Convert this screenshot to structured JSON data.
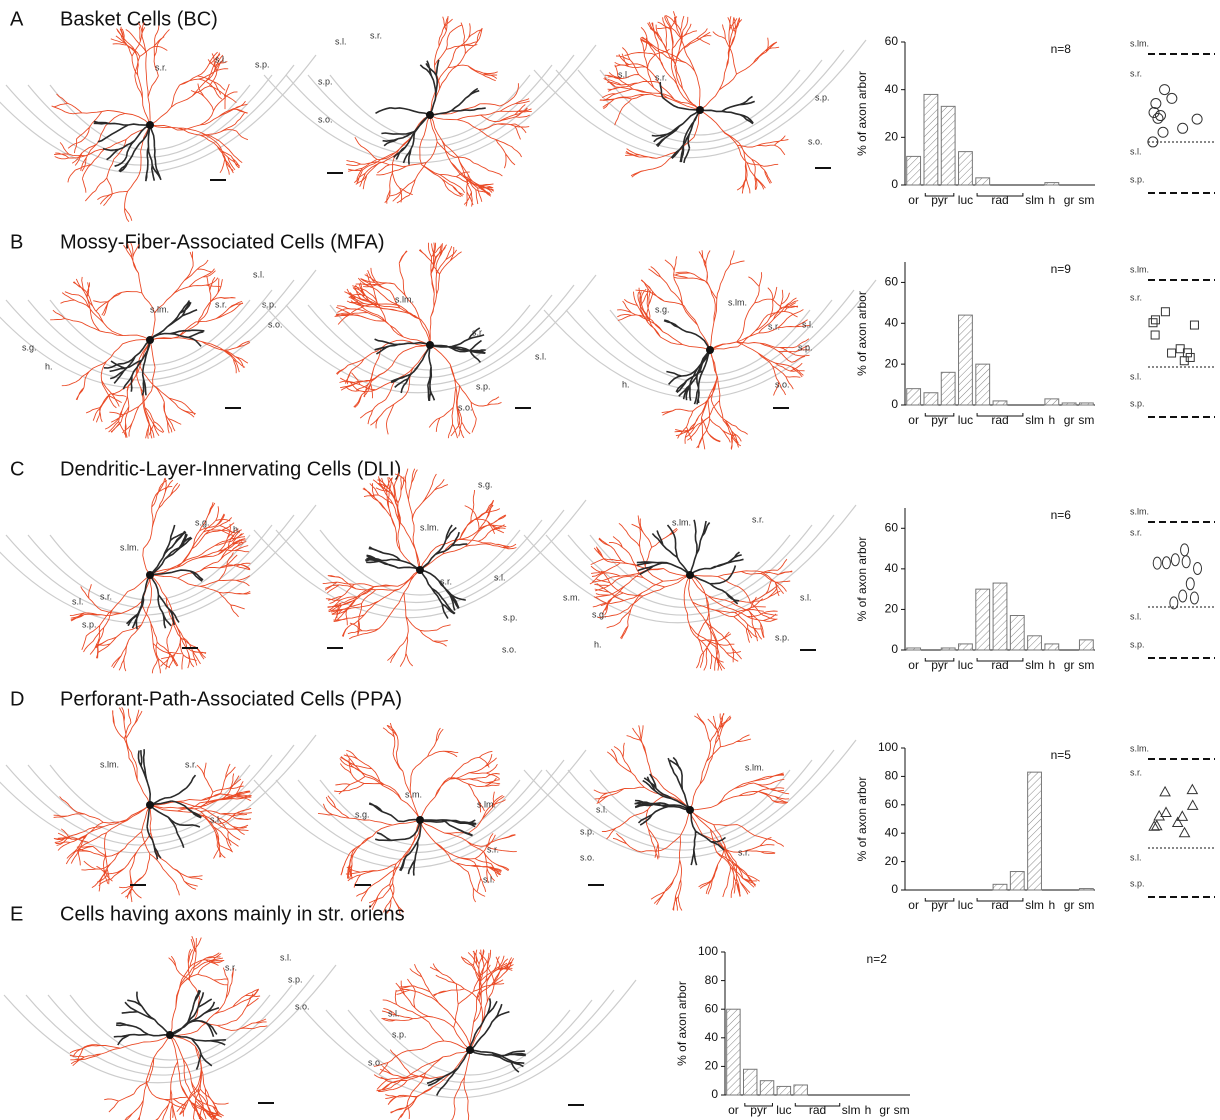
{
  "figure": {
    "panels": [
      {
        "letter": "A",
        "title": "Basket Cells (BC)",
        "drawing_labels": [
          [
            "s.r.",
            "s.l.",
            "s.p."
          ],
          [
            "s.l.",
            "s.r.",
            "s.p.",
            "s.o."
          ],
          [
            "s.l.",
            "s.r.",
            "s.p.",
            "s.o."
          ]
        ],
        "soma_labels": [
          "s.lm.",
          "s.r.",
          "s.l.",
          "s.p."
        ]
      },
      {
        "letter": "B",
        "title": "Mossy-Fiber-Associated Cells (MFA)",
        "drawing_labels": [
          [
            "s.lm.",
            "s.r.",
            "s.l.",
            "s.p.",
            "s.o.",
            "s.g.",
            "h."
          ],
          [
            "s.lm.",
            "s.r.",
            "s.l.",
            "s.p.",
            "s.o."
          ],
          [
            "s.g.",
            "s.lm.",
            "s.r.",
            "s.l.",
            "s.p.",
            "s.o.",
            "h."
          ]
        ],
        "soma_labels": [
          "s.lm.",
          "s.r.",
          "s.l.",
          "s.p."
        ]
      },
      {
        "letter": "C",
        "title": "Dendritic-Layer-Innervating Cells (DLI)",
        "drawing_labels": [
          [
            "s.g.",
            "h.",
            "s.lm.",
            "s.l.",
            "s.r.",
            "s.p."
          ],
          [
            "s.lm.",
            "s.r.",
            "s.l.",
            "s.p.",
            "s.o."
          ],
          [
            "s.g.",
            "s.lm.",
            "s.r.",
            "s.m.",
            "s.g.",
            "h.",
            "s.l.",
            "s.p."
          ]
        ],
        "soma_labels": [
          "s.lm.",
          "s.r.",
          "s.l.",
          "s.p."
        ]
      },
      {
        "letter": "D",
        "title": "Perforant-Path-Associated Cells (PPA)",
        "drawing_labels": [
          [
            "s.lm.",
            "s.r.",
            "s.l."
          ],
          [
            "s.m.",
            "s.lm.",
            "s.g.",
            "s.r.",
            "s.l."
          ],
          [
            "s.lm.",
            "s.l.",
            "s.p.",
            "s.r.",
            "s.o."
          ]
        ],
        "soma_labels": [
          "s.lm.",
          "s.r.",
          "s.l.",
          "s.p."
        ]
      },
      {
        "letter": "E",
        "title": "Cells having axons mainly in str. oriens",
        "drawing_labels": [
          [
            "s.r.",
            "s.l.",
            "s.p.",
            "s.o."
          ],
          [
            "s.l.",
            "s.p.",
            "s.o."
          ]
        ]
      }
    ]
  },
  "chart_data": [
    {
      "type": "bar",
      "ylabel": "% of axon arbor",
      "n_label": "n=8",
      "categories": [
        "or",
        "pyr",
        null,
        "luc",
        "rad",
        null,
        null,
        "slm",
        "h",
        "gr",
        "sm"
      ],
      "values": [
        12,
        38,
        33,
        14,
        3,
        0,
        0,
        0,
        1,
        0,
        0
      ],
      "color": "#777777",
      "ylim": [
        0,
        60
      ],
      "yticks": [
        0,
        20,
        40,
        60
      ]
    },
    {
      "type": "bar",
      "ylabel": "% of axon arbor",
      "n_label": "n=9",
      "categories": [
        "or",
        "pyr",
        null,
        "luc",
        "rad",
        null,
        null,
        "slm",
        "h",
        "gr",
        "sm"
      ],
      "values": [
        8,
        6,
        16,
        44,
        20,
        2,
        0,
        0,
        3,
        1,
        1
      ],
      "color": "#777777",
      "ylim": [
        0,
        70
      ],
      "yticks": [
        0,
        20,
        40,
        60
      ]
    },
    {
      "type": "bar",
      "ylabel": "% of axon arbor",
      "n_label": "n=6",
      "categories": [
        "or",
        "pyr",
        null,
        "luc",
        "rad",
        null,
        null,
        "slm",
        "h",
        "gr",
        "sm"
      ],
      "values": [
        1,
        0,
        1,
        3,
        30,
        33,
        17,
        7,
        3,
        0,
        5
      ],
      "color": "#777777",
      "ylim": [
        0,
        70
      ],
      "yticks": [
        0,
        20,
        40,
        60
      ]
    },
    {
      "type": "bar",
      "ylabel": "% of axon arbor",
      "n_label": "n=5",
      "categories": [
        "or",
        "pyr",
        null,
        "luc",
        "rad",
        null,
        null,
        "slm",
        "h",
        "gr",
        "sm"
      ],
      "values": [
        0,
        0,
        0,
        0,
        0,
        4,
        13,
        83,
        0,
        0,
        1
      ],
      "color": "#777777",
      "ylim": [
        0,
        100
      ],
      "yticks": [
        0,
        20,
        40,
        60,
        80,
        100
      ]
    },
    {
      "type": "bar",
      "ylabel": "% of axon arbor",
      "n_label": "n=2",
      "categories": [
        "or",
        "pyr",
        null,
        "luc",
        "rad",
        null,
        null,
        "slm",
        "h",
        "gr",
        "sm"
      ],
      "values": [
        60,
        18,
        10,
        6,
        7,
        0,
        0,
        0,
        0,
        0,
        0
      ],
      "color": "#777777",
      "ylim": [
        0,
        100
      ],
      "yticks": [
        0,
        20,
        40,
        60,
        80,
        100
      ]
    }
  ]
}
